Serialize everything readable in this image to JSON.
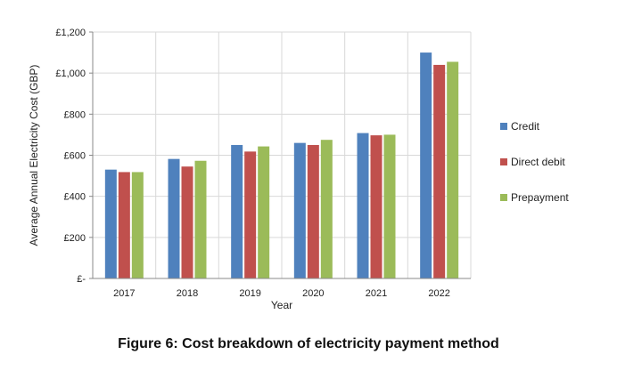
{
  "caption": "Figure 6: Cost breakdown of electricity payment method",
  "chart_data": {
    "type": "bar",
    "title": "",
    "xlabel": "Year",
    "ylabel": "Average Annual Electricity Cost (GBP)",
    "categories": [
      "2017",
      "2018",
      "2019",
      "2020",
      "2021",
      "2022"
    ],
    "ylim": [
      0,
      1200
    ],
    "yticks": [
      0,
      200,
      400,
      600,
      800,
      1000,
      1200
    ],
    "ytick_labels": [
      "£-",
      "£200",
      "£400",
      "£600",
      "£800",
      "£1,000",
      "£1,200"
    ],
    "grid": "both",
    "legend_position": "right",
    "series": [
      {
        "name": "Credit",
        "color": "#4f81bd",
        "values": [
          530,
          582,
          650,
          660,
          708,
          1100
        ]
      },
      {
        "name": "Direct debit",
        "color": "#c0504d",
        "values": [
          518,
          545,
          618,
          650,
          697,
          1040
        ]
      },
      {
        "name": "Prepayment",
        "color": "#9bbb59",
        "values": [
          518,
          573,
          643,
          675,
          700,
          1055
        ]
      }
    ]
  }
}
